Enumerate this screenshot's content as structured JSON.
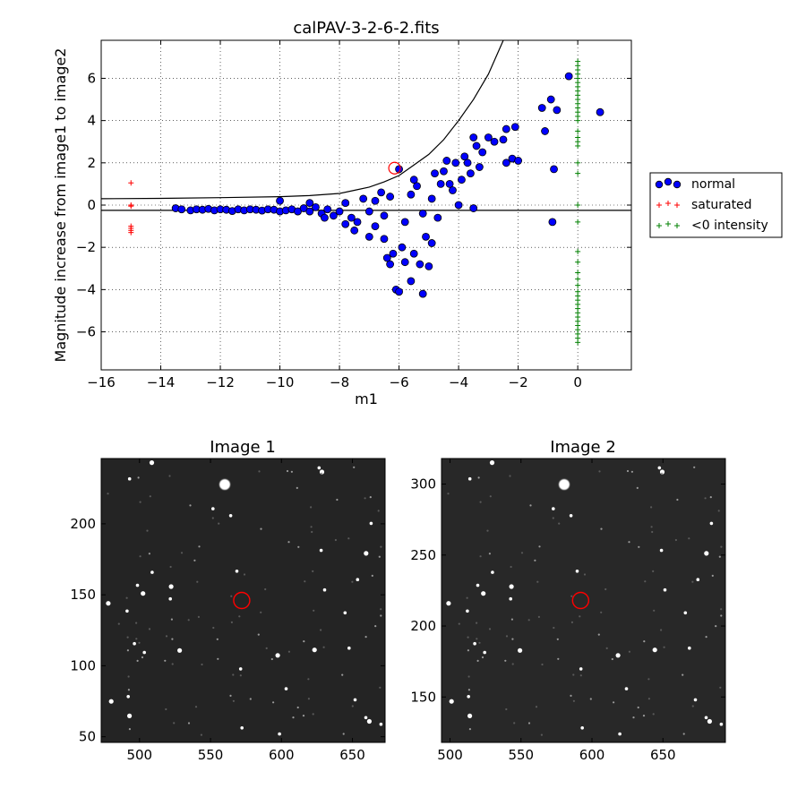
{
  "chart_data": [
    {
      "type": "scatter",
      "title": "calPAV-3-2-6-2.fits",
      "xlabel": "m1",
      "ylabel": "Magnitude increase from image1 to image2",
      "xlim": [
        -16,
        1.8
      ],
      "ylim": [
        -7.8,
        7.8
      ],
      "xticks": [
        -16,
        -14,
        -12,
        -10,
        -8,
        -6,
        -4,
        -2,
        0
      ],
      "yticks": [
        -6,
        -4,
        -2,
        0,
        2,
        4,
        6
      ],
      "xtick_labels": [
        "−16",
        "−14",
        "−12",
        "−10",
        "−8",
        "−6",
        "−4",
        "−2",
        "0"
      ],
      "ytick_labels": [
        "−6",
        "−4",
        "−2",
        "0",
        "2",
        "4",
        "6"
      ],
      "grid": true,
      "legend_placement": "outside-right",
      "series": [
        {
          "name": "normal",
          "marker": "circle",
          "color": "#0000ff",
          "points": [
            [
              -13.5,
              -0.15
            ],
            [
              -13.3,
              -0.2
            ],
            [
              -13.0,
              -0.25
            ],
            [
              -12.8,
              -0.2
            ],
            [
              -12.6,
              -0.22
            ],
            [
              -12.4,
              -0.18
            ],
            [
              -12.2,
              -0.25
            ],
            [
              -12.0,
              -0.2
            ],
            [
              -11.8,
              -0.22
            ],
            [
              -11.6,
              -0.28
            ],
            [
              -11.4,
              -0.2
            ],
            [
              -11.2,
              -0.25
            ],
            [
              -11.0,
              -0.2
            ],
            [
              -10.8,
              -0.22
            ],
            [
              -10.6,
              -0.26
            ],
            [
              -10.4,
              -0.2
            ],
            [
              -10.2,
              -0.22
            ],
            [
              -10.0,
              0.2
            ],
            [
              -10.0,
              -0.3
            ],
            [
              -9.8,
              -0.25
            ],
            [
              -9.6,
              -0.2
            ],
            [
              -9.4,
              -0.3
            ],
            [
              -9.2,
              -0.15
            ],
            [
              -9.0,
              -0.3
            ],
            [
              -8.8,
              -0.1
            ],
            [
              -8.6,
              -0.4
            ],
            [
              -8.4,
              -0.2
            ],
            [
              -8.2,
              -0.5
            ],
            [
              -8.0,
              -0.3
            ],
            [
              -7.8,
              0.1
            ],
            [
              -7.6,
              -0.6
            ],
            [
              -7.4,
              -0.8
            ],
            [
              -7.2,
              0.3
            ],
            [
              -7.0,
              -1.5
            ],
            [
              -6.8,
              -1.0
            ],
            [
              -6.6,
              0.6
            ],
            [
              -6.5,
              -1.6
            ],
            [
              -6.4,
              -2.5
            ],
            [
              -6.3,
              -2.8
            ],
            [
              -6.2,
              -2.3
            ],
            [
              -6.1,
              -4.0
            ],
            [
              -6.0,
              -4.1
            ],
            [
              -5.9,
              -2.0
            ],
            [
              -5.8,
              -2.7
            ],
            [
              -5.6,
              -3.6
            ],
            [
              -5.5,
              -2.3
            ],
            [
              -5.4,
              0.9
            ],
            [
              -5.3,
              -2.8
            ],
            [
              -5.2,
              -4.2
            ],
            [
              -5.1,
              -1.5
            ],
            [
              -5.0,
              -2.9
            ],
            [
              -4.9,
              -1.8
            ],
            [
              -4.8,
              1.5
            ],
            [
              -4.7,
              -0.6
            ],
            [
              -4.6,
              1.0
            ],
            [
              -4.5,
              1.6
            ],
            [
              -4.4,
              2.1
            ],
            [
              -4.3,
              1.0
            ],
            [
              -4.2,
              0.7
            ],
            [
              -4.1,
              2.0
            ],
            [
              -4.0,
              0.0
            ],
            [
              -3.9,
              1.2
            ],
            [
              -3.8,
              2.3
            ],
            [
              -3.7,
              2.0
            ],
            [
              -3.6,
              1.5
            ],
            [
              -3.5,
              3.2
            ],
            [
              -3.5,
              -0.15
            ],
            [
              -3.4,
              2.8
            ],
            [
              -3.3,
              1.8
            ],
            [
              -3.2,
              2.5
            ],
            [
              -3.0,
              3.2
            ],
            [
              -2.8,
              3.0
            ],
            [
              -2.5,
              3.1
            ],
            [
              -2.4,
              3.6
            ],
            [
              -2.4,
              2.0
            ],
            [
              -2.2,
              2.2
            ],
            [
              -2.1,
              3.7
            ],
            [
              -2.0,
              2.1
            ],
            [
              -1.2,
              4.6
            ],
            [
              -1.1,
              3.5
            ],
            [
              -0.9,
              5.0
            ],
            [
              -0.85,
              -0.8
            ],
            [
              -0.8,
              1.7
            ],
            [
              -0.7,
              4.5
            ],
            [
              -0.3,
              6.1
            ],
            [
              0.75,
              4.4
            ],
            [
              -6.0,
              1.7
            ],
            [
              -7.0,
              -0.3
            ],
            [
              -6.8,
              0.2
            ],
            [
              -6.5,
              -0.5
            ],
            [
              -6.3,
              0.4
            ],
            [
              -5.8,
              -0.8
            ],
            [
              -5.6,
              0.5
            ],
            [
              -5.2,
              -0.4
            ],
            [
              -7.5,
              -1.2
            ],
            [
              -7.8,
              -0.9
            ],
            [
              -8.5,
              -0.6
            ],
            [
              -9.0,
              0.1
            ],
            [
              -5.5,
              1.2
            ],
            [
              -4.9,
              0.3
            ]
          ]
        },
        {
          "name": "saturated",
          "marker": "plus",
          "color": "#ff0000",
          "points": [
            [
              -15,
              1.05
            ],
            [
              -15,
              0.0
            ],
            [
              -15,
              -0.05
            ],
            [
              -15,
              -1.0
            ],
            [
              -15,
              -1.1
            ],
            [
              -15,
              -1.2
            ],
            [
              -15,
              -1.3
            ]
          ]
        },
        {
          "name": "<0 intensity",
          "marker": "plus",
          "color": "#008000",
          "points": [
            [
              0,
              6.8
            ],
            [
              0,
              6.6
            ],
            [
              0,
              6.4
            ],
            [
              0,
              6.2
            ],
            [
              0,
              6.0
            ],
            [
              0,
              5.8
            ],
            [
              0,
              5.6
            ],
            [
              0,
              5.4
            ],
            [
              0,
              5.2
            ],
            [
              0,
              5.0
            ],
            [
              0,
              4.8
            ],
            [
              0,
              4.6
            ],
            [
              0,
              4.4
            ],
            [
              0,
              4.2
            ],
            [
              0,
              4.0
            ],
            [
              0,
              3.5
            ],
            [
              0,
              3.2
            ],
            [
              0,
              3.0
            ],
            [
              0,
              2.8
            ],
            [
              0,
              2.0
            ],
            [
              0,
              1.5
            ],
            [
              0,
              0.0
            ],
            [
              0,
              -0.8
            ],
            [
              0,
              -2.2
            ],
            [
              0,
              -2.7
            ],
            [
              0,
              -3.2
            ],
            [
              0,
              -3.5
            ],
            [
              0,
              -3.8
            ],
            [
              0,
              -4.1
            ],
            [
              0,
              -4.3
            ],
            [
              0,
              -4.5
            ],
            [
              0,
              -4.7
            ],
            [
              0,
              -4.9
            ],
            [
              0,
              -5.1
            ],
            [
              0,
              -5.3
            ],
            [
              0,
              -5.5
            ],
            [
              0,
              -5.7
            ],
            [
              0,
              -5.9
            ],
            [
              0,
              -6.1
            ],
            [
              0,
              -6.3
            ],
            [
              0,
              -6.5
            ]
          ]
        }
      ],
      "lines": [
        {
          "type": "horizontal",
          "y": -0.25,
          "color": "#000000"
        },
        {
          "type": "curve",
          "color": "#000000",
          "points": [
            [
              -16,
              0.3
            ],
            [
              -14,
              0.32
            ],
            [
              -12,
              0.35
            ],
            [
              -10,
              0.4
            ],
            [
              -9,
              0.45
            ],
            [
              -8,
              0.55
            ],
            [
              -7.5,
              0.7
            ],
            [
              -7,
              0.85
            ],
            [
              -6.5,
              1.1
            ],
            [
              -6,
              1.4
            ],
            [
              -5.5,
              1.9
            ],
            [
              -5,
              2.4
            ],
            [
              -4.5,
              3.1
            ],
            [
              -4,
              4.0
            ],
            [
              -3.5,
              5.0
            ],
            [
              -3,
              6.2
            ],
            [
              -2.5,
              7.8
            ]
          ]
        }
      ],
      "highlight": {
        "x": -6.15,
        "y": 1.75,
        "color": "#ff0000"
      }
    },
    {
      "type": "image",
      "title": "Image 1",
      "xlim": [
        473,
        673
      ],
      "ylim": [
        46,
        246
      ],
      "xticks": [
        500,
        550,
        600,
        650
      ],
      "yticks": [
        50,
        100,
        150,
        200
      ],
      "highlight": {
        "x": 572,
        "y": 146,
        "color": "#ff0000"
      }
    },
    {
      "type": "image",
      "title": "Image 2",
      "xlim": [
        494,
        694
      ],
      "ylim": [
        118,
        318
      ],
      "xticks": [
        500,
        550,
        600,
        650
      ],
      "yticks": [
        150,
        200,
        250,
        300
      ],
      "highlight": {
        "x": 592,
        "y": 218,
        "color": "#ff0000"
      }
    }
  ]
}
